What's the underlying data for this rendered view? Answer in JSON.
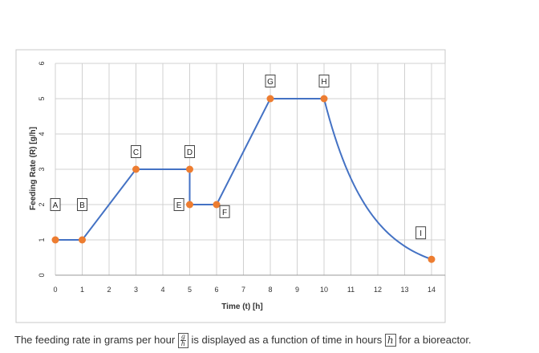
{
  "chart_data": {
    "type": "line",
    "xlabel": "Time (t) [h]",
    "ylabel": "Feeding Rate (R) [g/h]",
    "xlim": [
      0,
      14
    ],
    "ylim": [
      0,
      6
    ],
    "x_ticks": [
      "0",
      "1",
      "2",
      "3",
      "4",
      "5",
      "6",
      "7",
      "8",
      "9",
      "10",
      "11",
      "12",
      "13",
      "14"
    ],
    "y_ticks": [
      "0",
      "1",
      "2",
      "3",
      "4",
      "5",
      "6"
    ],
    "grid": true,
    "series": [
      {
        "segments": [
          {
            "kind": "linear",
            "from": [
              0,
              1
            ],
            "to": [
              1,
              1
            ]
          },
          {
            "kind": "linear",
            "from": [
              1,
              1
            ],
            "to": [
              3,
              3
            ]
          },
          {
            "kind": "linear",
            "from": [
              3,
              3
            ],
            "to": [
              5,
              3
            ]
          },
          {
            "kind": "linear",
            "from": [
              5,
              3
            ],
            "to": [
              5,
              2
            ]
          },
          {
            "kind": "linear",
            "from": [
              5,
              2
            ],
            "to": [
              6,
              2
            ]
          },
          {
            "kind": "linear",
            "from": [
              6,
              2
            ],
            "to": [
              8,
              5
            ]
          },
          {
            "kind": "linear",
            "from": [
              8,
              5
            ],
            "to": [
              10,
              5
            ]
          },
          {
            "kind": "exponential",
            "from": [
              10,
              5
            ],
            "to": [
              14,
              0.45
            ]
          }
        ]
      }
    ],
    "points": [
      {
        "x": 0,
        "y": 1
      },
      {
        "x": 1,
        "y": 1
      },
      {
        "x": 3,
        "y": 3
      },
      {
        "x": 5,
        "y": 3
      },
      {
        "x": 5,
        "y": 2
      },
      {
        "x": 6,
        "y": 2
      },
      {
        "x": 8,
        "y": 5
      },
      {
        "x": 10,
        "y": 5
      },
      {
        "x": 14,
        "y": 0.45
      }
    ],
    "point_labels": [
      {
        "text": "A",
        "x": 0,
        "y": 2
      },
      {
        "text": "B",
        "x": 1,
        "y": 2
      },
      {
        "text": "C",
        "x": 3,
        "y": 3.5
      },
      {
        "text": "D",
        "x": 5,
        "y": 3.5
      },
      {
        "text": "E",
        "x": 4.6,
        "y": 2
      },
      {
        "text": "F",
        "x": 6.3,
        "y": 1.8
      },
      {
        "text": "G",
        "x": 8,
        "y": 5.5
      },
      {
        "text": "H",
        "x": 10,
        "y": 5.5
      },
      {
        "text": "I",
        "x": 13.6,
        "y": 1.2
      }
    ],
    "colors": {
      "line": "#4472c4",
      "marker": "#ed7d31",
      "grid": "#d0d0d0",
      "axis": "#999999"
    }
  },
  "caption": {
    "text_before": "The feeding rate in grams per hour ",
    "unit_num": "g",
    "unit_den": "h",
    "text_middle": " is displayed as a function of time in hours ",
    "time_unit": "h",
    "text_after": " for a bioreactor."
  }
}
